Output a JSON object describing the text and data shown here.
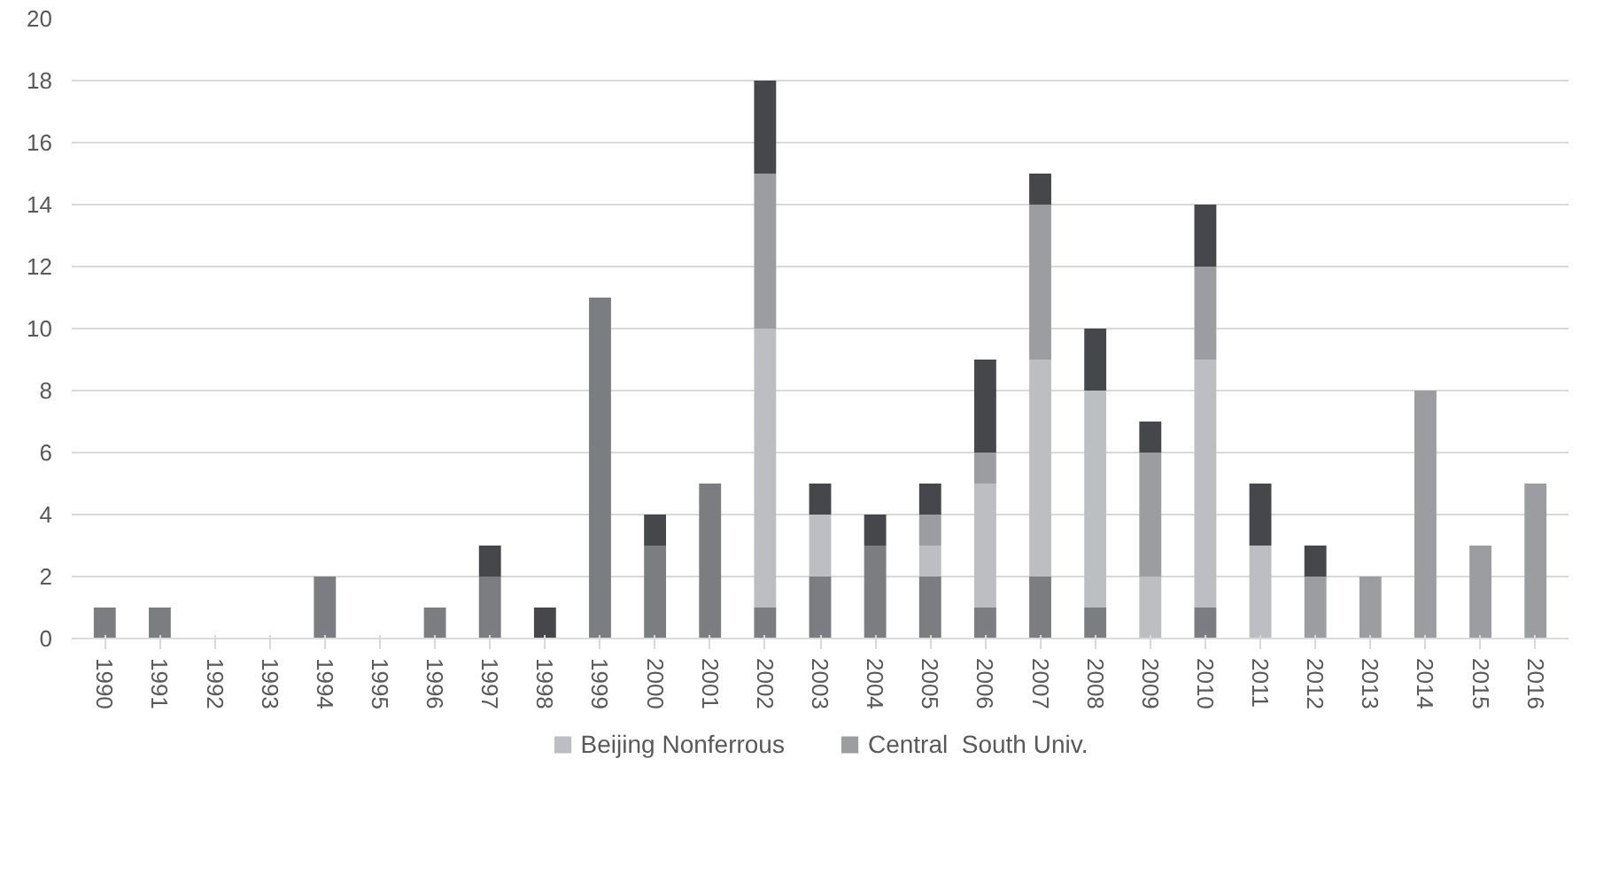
{
  "chart_data": {
    "type": "bar",
    "stacked": true,
    "categories": [
      "1990",
      "1991",
      "1992",
      "1993",
      "1994",
      "1995",
      "1996",
      "1997",
      "1998",
      "1999",
      "2000",
      "2001",
      "2002",
      "2003",
      "2004",
      "2005",
      "2006",
      "2007",
      "2008",
      "2009",
      "2010",
      "2011",
      "2012",
      "2013",
      "2014",
      "2015",
      "2016"
    ],
    "series": [
      {
        "color": "#7c7d80",
        "values": [
          1,
          1,
          0,
          0,
          2,
          0,
          1,
          2,
          0,
          11,
          3,
          5,
          1,
          2,
          3,
          2,
          1,
          2,
          1,
          0,
          1,
          0,
          0,
          0,
          0,
          0,
          0
        ]
      },
      {
        "name": "Beijing Nonferrous",
        "color": "#bdbec2",
        "values": [
          0,
          0,
          0,
          0,
          0,
          0,
          0,
          0,
          0,
          0,
          0,
          0,
          9,
          2,
          0,
          1,
          4,
          7,
          7,
          2,
          8,
          3,
          0,
          0,
          0,
          0,
          0
        ]
      },
      {
        "name": "Central  South Univ.",
        "color": "#9c9da0",
        "values": [
          0,
          0,
          0,
          0,
          0,
          0,
          0,
          0,
          0,
          0,
          0,
          0,
          5,
          0,
          0,
          1,
          1,
          5,
          0,
          4,
          3,
          0,
          2,
          2,
          8,
          3,
          5
        ]
      },
      {
        "color": "#46474a",
        "values": [
          0,
          0,
          0,
          0,
          0,
          0,
          0,
          1,
          1,
          0,
          1,
          0,
          3,
          1,
          1,
          1,
          3,
          1,
          2,
          1,
          2,
          2,
          1,
          0,
          0,
          0,
          0
        ]
      }
    ],
    "ylim": [
      0,
      20
    ],
    "yticks": [
      0,
      2,
      4,
      6,
      8,
      10,
      12,
      14,
      16,
      18,
      20
    ],
    "grid": "y",
    "legend": "bottom"
  }
}
